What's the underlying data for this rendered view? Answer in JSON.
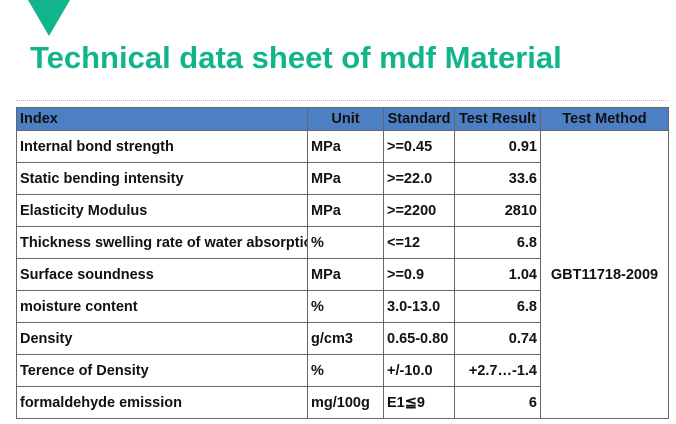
{
  "title": "Technical data sheet of mdf Material",
  "table": {
    "header": [
      "Index",
      "Unit",
      "Standard",
      "Test Result",
      "Test Method"
    ],
    "rows": [
      [
        "Internal bond strength",
        "MPa",
        ">=0.45",
        "0.91"
      ],
      [
        "Static bending intensity",
        "MPa",
        ">=22.0",
        "33.6"
      ],
      [
        "Elasticity Modulus",
        "MPa",
        ">=2200",
        "2810"
      ],
      [
        "Thickness swelling rate of water absorptio",
        "%",
        "<=12",
        "6.8"
      ],
      [
        "Surface soundness",
        "MPa",
        ">=0.9",
        "1.04"
      ],
      [
        "moisture content",
        "%",
        "3.0-13.0",
        "6.8"
      ],
      [
        "Density",
        "g/cm3",
        "0.65-0.80",
        "0.74"
      ],
      [
        "Terence of Density",
        "%",
        "+/-10.0",
        "+2.7…-1.4"
      ],
      [
        "formaldehyde emission",
        "mg/100g",
        "E1≦9",
        "6"
      ]
    ],
    "method": "GBT11718-2009"
  }
}
